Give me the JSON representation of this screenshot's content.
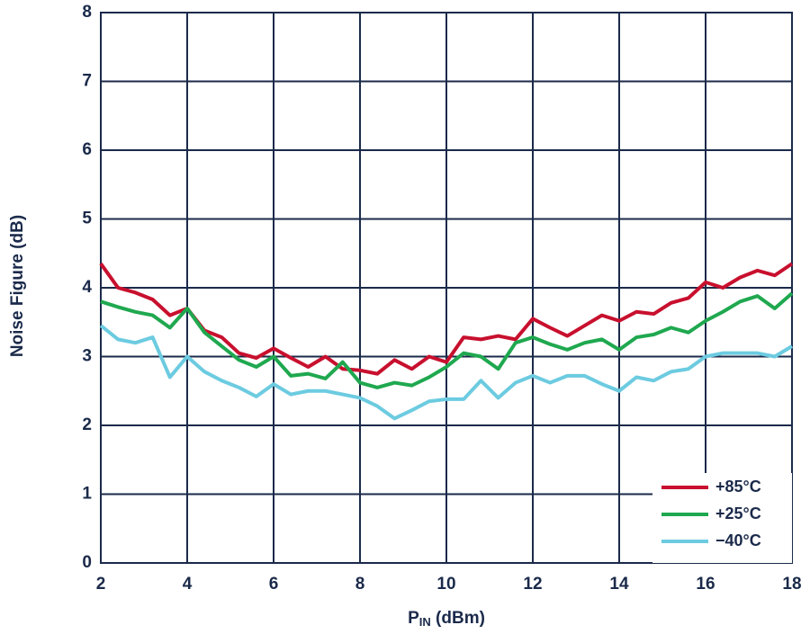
{
  "chart_data": {
    "type": "line",
    "xlabel": {
      "base": "P",
      "sub": "IN",
      "rest": " (dBm)"
    },
    "ylabel": "Noise Figure (dB)",
    "x": [
      2.0,
      2.4,
      2.8,
      3.2,
      3.6,
      4.0,
      4.4,
      4.8,
      5.2,
      5.6,
      6.0,
      6.4,
      6.8,
      7.2,
      7.6,
      8.0,
      8.4,
      8.8,
      9.2,
      9.6,
      10.0,
      10.4,
      10.8,
      11.2,
      11.6,
      12.0,
      12.4,
      12.8,
      13.2,
      13.6,
      14.0,
      14.4,
      14.8,
      15.2,
      15.6,
      16.0,
      16.4,
      16.8,
      17.2,
      17.6,
      18.0
    ],
    "series": [
      {
        "name": "+85°C",
        "color": "#c8102e",
        "values": [
          4.35,
          4.0,
          3.93,
          3.83,
          3.6,
          3.7,
          3.38,
          3.28,
          3.05,
          2.98,
          3.12,
          2.98,
          2.85,
          3.0,
          2.82,
          2.8,
          2.75,
          2.95,
          2.82,
          3.0,
          2.92,
          3.28,
          3.25,
          3.3,
          3.25,
          3.55,
          3.42,
          3.3,
          3.45,
          3.6,
          3.52,
          3.65,
          3.62,
          3.78,
          3.85,
          4.08,
          4.0,
          4.15,
          4.25,
          4.18,
          4.35
        ]
      },
      {
        "name": "+25°C",
        "color": "#1fa84f",
        "values": [
          3.8,
          3.72,
          3.65,
          3.6,
          3.42,
          3.7,
          3.35,
          3.15,
          2.95,
          2.85,
          3.0,
          2.72,
          2.75,
          2.68,
          2.92,
          2.62,
          2.55,
          2.62,
          2.58,
          2.7,
          2.85,
          3.05,
          3.0,
          2.82,
          3.2,
          3.28,
          3.18,
          3.1,
          3.2,
          3.25,
          3.1,
          3.28,
          3.32,
          3.42,
          3.35,
          3.52,
          3.65,
          3.8,
          3.88,
          3.7,
          3.92
        ]
      },
      {
        "name": "−40°C",
        "color": "#6ccbe0",
        "values": [
          3.45,
          3.25,
          3.2,
          3.28,
          2.7,
          3.0,
          2.78,
          2.65,
          2.55,
          2.42,
          2.6,
          2.45,
          2.5,
          2.5,
          2.45,
          2.4,
          2.28,
          2.1,
          2.22,
          2.35,
          2.38,
          2.38,
          2.65,
          2.4,
          2.62,
          2.72,
          2.62,
          2.72,
          2.72,
          2.6,
          2.5,
          2.7,
          2.65,
          2.78,
          2.82,
          3.0,
          3.05,
          3.05,
          3.05,
          3.0,
          3.15
        ]
      }
    ],
    "xlim": [
      2,
      18
    ],
    "ylim": [
      0,
      8
    ],
    "xticks": [
      2,
      4,
      6,
      8,
      10,
      12,
      14,
      16,
      18
    ],
    "yticks": [
      0,
      1,
      2,
      3,
      4,
      5,
      6,
      7,
      8
    ],
    "grid": true,
    "legend": "lower right"
  }
}
